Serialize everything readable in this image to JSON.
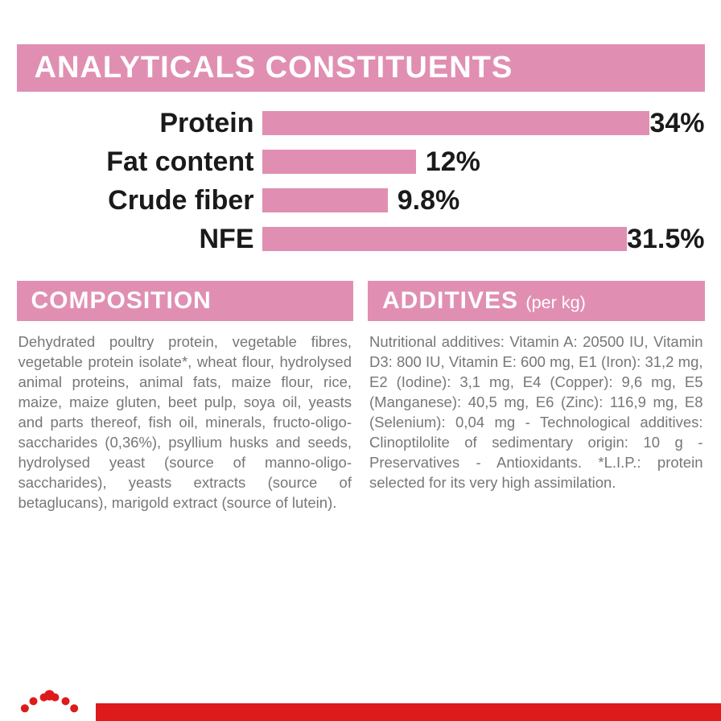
{
  "analyticals": {
    "header": "ANALYTICALS CONSTITUENTS",
    "header_bg": "#e08fb2",
    "header_fontsize": 38,
    "label_color": "#1a1a1a",
    "label_fontsize": 34,
    "value_fontsize": 34,
    "bar_color": "#e08fb2",
    "chart_background": "#ffffff",
    "scale_max": 34.5,
    "rows": [
      {
        "label": "Protein",
        "value": 34,
        "display": "34%",
        "value_at_end": true
      },
      {
        "label": "Fat content",
        "value": 12,
        "display": "12%",
        "value_at_end": false
      },
      {
        "label": "Crude fiber",
        "value": 9.8,
        "display": "9.8%",
        "value_at_end": false
      },
      {
        "label": "NFE",
        "value": 31.5,
        "display": "31.5%",
        "value_at_end": true
      }
    ]
  },
  "composition": {
    "header": "COMPOSITION",
    "header_bg": "#e08fb2",
    "header_fontsize": 30,
    "body_fontsize": 18.5,
    "body_color": "#777777",
    "text": "Dehydrated poultry protein, vegetable fibres, vegetable protein isolate*, wheat flour, hydrolysed animal proteins, animal fats, maize flour, rice, maize, maize gluten, beet pulp, soya oil, yeasts and parts thereof, fish oil, minerals, fructo-oligo- saccharides (0,36%), psyllium husks and seeds, hydrolysed yeast (source of manno-oligo-saccharides), yeasts extracts (source of betaglucans), marigold extract (source of lutein)."
  },
  "additives": {
    "header": "ADDITIVES",
    "header_sub": "(per kg)",
    "header_bg": "#e08fb2",
    "header_fontsize": 30,
    "body_fontsize": 18.5,
    "body_color": "#777777",
    "text": "Nutritional additives: Vitamin A: 20500 IU, Vitamin D3: 800 IU, Vitamin E: 600 mg, E1 (Iron): 31,2 mg, E2 (Iodine): 3,1 mg, E4 (Copper): 9,6 mg, E5 (Manganese): 40,5 mg, E6 (Zinc): 116,9 mg, E8 (Selenium): 0,04 mg - Technological additives: Clinoptilolite of sedimentary origin: 10 g - Preservatives - Antioxidants. *L.I.P.: protein selected for its very high assimilation."
  },
  "footer": {
    "strip_color": "#dd1b1b",
    "logo_color": "#dd1b1b"
  }
}
